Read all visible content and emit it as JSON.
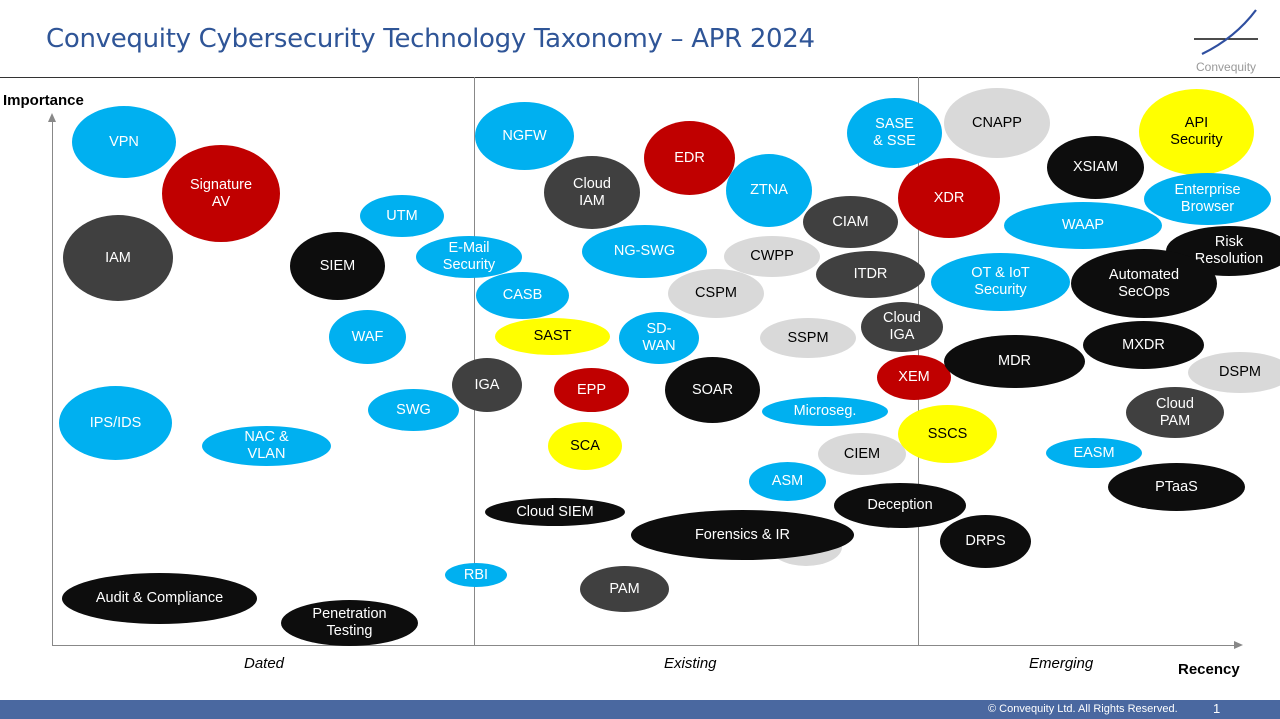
{
  "header": {
    "title": "Convequity Cybersecurity Technology Taxonomy – APR 2024",
    "logo_text": "Convequity"
  },
  "axes": {
    "y_label": "Importance",
    "x_label": "Recency",
    "zones": [
      "Dated",
      "Existing",
      "Emerging"
    ]
  },
  "palette": {
    "blue": "#00b0f0",
    "red": "#c00000",
    "black": "#0d0d0d",
    "darkgray": "#404040",
    "lightgray": "#d9d9d9",
    "yellow": "#ffff00",
    "title": "#2f5597"
  },
  "bubbles": [
    {
      "label": "VPN",
      "category": "blue"
    },
    {
      "label": "Signature\nAV",
      "category": "red"
    },
    {
      "label": "IAM",
      "category": "darkgray"
    },
    {
      "label": "UTM",
      "category": "blue"
    },
    {
      "label": "SIEM",
      "category": "black"
    },
    {
      "label": "E-Mail\nSecurity",
      "category": "blue"
    },
    {
      "label": "WAF",
      "category": "blue"
    },
    {
      "label": "IPS/IDS",
      "category": "blue"
    },
    {
      "label": "NAC &\nVLAN",
      "category": "blue"
    },
    {
      "label": "SWG",
      "category": "blue"
    },
    {
      "label": "IGA",
      "category": "darkgray"
    },
    {
      "label": "NGFW",
      "category": "blue"
    },
    {
      "label": "Cloud\nIAM",
      "category": "darkgray"
    },
    {
      "label": "CASB",
      "category": "blue"
    },
    {
      "label": "SAST",
      "category": "yellow"
    },
    {
      "label": "EPP",
      "category": "red"
    },
    {
      "label": "SCA",
      "category": "yellow"
    },
    {
      "label": "EDR",
      "category": "red"
    },
    {
      "label": "NG-SWG",
      "category": "blue"
    },
    {
      "label": "SD-\nWAN",
      "category": "blue"
    },
    {
      "label": "SOAR",
      "category": "black"
    },
    {
      "label": "Cloud SIEM",
      "category": "black"
    },
    {
      "label": "RBI",
      "category": "blue"
    },
    {
      "label": "PAM",
      "category": "darkgray"
    },
    {
      "label": "ZTNA",
      "category": "blue"
    },
    {
      "label": "CWPP",
      "category": "lightgray"
    },
    {
      "label": "CSPM",
      "category": "lightgray"
    },
    {
      "label": "SSPM",
      "category": "lightgray"
    },
    {
      "label": "Microseg.",
      "category": "blue"
    },
    {
      "label": "ASM",
      "category": "blue"
    },
    {
      "label": "CIEM",
      "category": "lightgray"
    },
    {
      "label": "",
      "category": "lightgray"
    },
    {
      "label": "Forensics & IR",
      "category": "black"
    },
    {
      "label": "Deception",
      "category": "black"
    },
    {
      "label": "DRPS",
      "category": "black"
    },
    {
      "label": "SASE\n& SSE",
      "category": "blue"
    },
    {
      "label": "CNAPP",
      "category": "lightgray"
    },
    {
      "label": "XDR",
      "category": "red"
    },
    {
      "label": "CIAM",
      "category": "darkgray"
    },
    {
      "label": "ITDR",
      "category": "darkgray"
    },
    {
      "label": "OT & IoT\nSecurity",
      "category": "blue"
    },
    {
      "label": "Cloud\nIGA",
      "category": "darkgray"
    },
    {
      "label": "XEM",
      "category": "red"
    },
    {
      "label": "SSCS",
      "category": "yellow"
    },
    {
      "label": "MDR",
      "category": "black"
    },
    {
      "label": "XSIAM",
      "category": "black"
    },
    {
      "label": "WAAP",
      "category": "blue"
    },
    {
      "label": "API\nSecurity",
      "category": "yellow"
    },
    {
      "label": "Enterprise\nBrowser",
      "category": "blue"
    },
    {
      "label": "Risk\nResolution",
      "category": "black"
    },
    {
      "label": "Automated\nSecOps",
      "category": "black"
    },
    {
      "label": "MXDR",
      "category": "black"
    },
    {
      "label": "DSPM",
      "category": "lightgray"
    },
    {
      "label": "Cloud\nPAM",
      "category": "darkgray"
    },
    {
      "label": "EASM",
      "category": "blue"
    },
    {
      "label": "PTaaS",
      "category": "black"
    },
    {
      "label": "Audit & Compliance",
      "category": "black"
    },
    {
      "label": "Penetration\nTesting",
      "category": "black"
    }
  ],
  "footer": {
    "copyright": "© Convequity Ltd. All Rights Reserved.",
    "page_number": "1"
  }
}
